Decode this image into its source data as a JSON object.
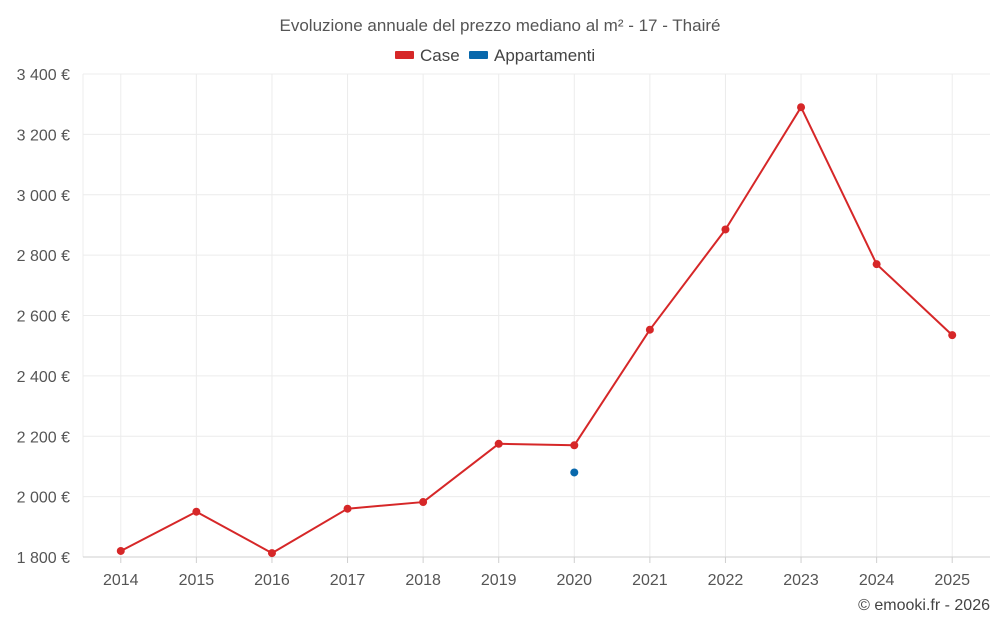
{
  "chart_data": {
    "type": "line",
    "title": "Evoluzione annuale del prezzo mediano al m² - 17 - Thairé",
    "categories": [
      "2014",
      "2015",
      "2016",
      "2017",
      "2018",
      "2019",
      "2020",
      "2021",
      "2022",
      "2023",
      "2024",
      "2025"
    ],
    "series": [
      {
        "name": "Case",
        "color": "#d62728",
        "values": [
          1820,
          1950,
          1813,
          1960,
          1982,
          2175,
          2170,
          2553,
          2885,
          3290,
          2770,
          2535
        ]
      },
      {
        "name": "Appartamenti",
        "color": "#0868ac",
        "values": [
          null,
          null,
          null,
          null,
          null,
          null,
          2080,
          null,
          null,
          null,
          null,
          null
        ]
      }
    ],
    "ylim": [
      1800,
      3400
    ],
    "yticks": [
      1800,
      2000,
      2200,
      2400,
      2600,
      2800,
      3000,
      3200,
      3400
    ],
    "ytick_labels": [
      "1 800 €",
      "2 000 €",
      "2 200 €",
      "2 400 €",
      "2 600 €",
      "2 800 €",
      "3 000 €",
      "3 200 €",
      "3 400 €"
    ],
    "legend_position": "top-center",
    "grid": true
  },
  "credit": "© emooki.fr - 2026"
}
